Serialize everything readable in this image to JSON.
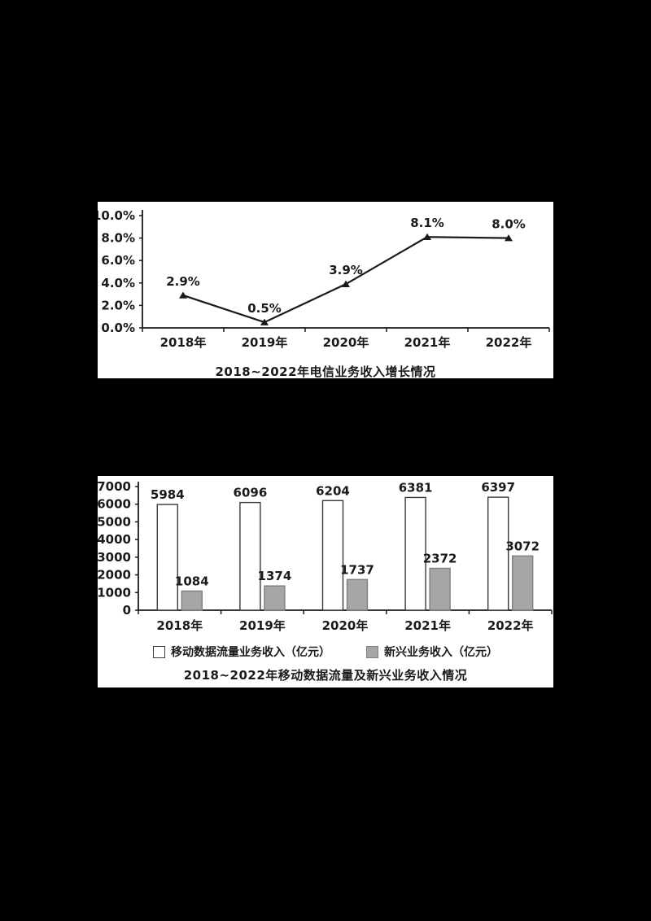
{
  "page": {
    "background": "#000000",
    "panel_background": "#ffffff",
    "text_color": "#1a1a1a"
  },
  "chart_data": [
    {
      "type": "line",
      "title": "2018~2022年电信业务收入增长情况",
      "categories": [
        "2018年",
        "2019年",
        "2020年",
        "2021年",
        "2022年"
      ],
      "values": [
        2.9,
        0.5,
        3.9,
        8.1,
        8.0
      ],
      "data_labels": [
        "2.9%",
        "0.5%",
        "3.9%",
        "8.1%",
        "8.0%"
      ],
      "ylabel": "",
      "xlabel": "",
      "ylim": [
        0,
        10
      ],
      "ytick_step": 2,
      "ytick_labels": [
        "0.0%",
        "2.0%",
        "4.0%",
        "6.0%",
        "8.0%",
        "10.0%"
      ],
      "line_color": "#1a1a1a",
      "marker": "triangle",
      "grid": false,
      "legend_position": "none"
    },
    {
      "type": "bar",
      "title": "2018~2022年移动数据流量及新兴业务收入情况",
      "categories": [
        "2018年",
        "2019年",
        "2020年",
        "2021年",
        "2022年"
      ],
      "series": [
        {
          "name": "移动数据流量业务收入（亿元）",
          "values": [
            5984,
            6096,
            6204,
            6381,
            6397
          ],
          "fill": "#ffffff",
          "stroke": "#3a3a3a"
        },
        {
          "name": "新兴业务收入（亿元）",
          "values": [
            1084,
            1374,
            1737,
            2372,
            3072
          ],
          "fill": "#a6a6a6",
          "stroke": "#7f7f7f"
        }
      ],
      "ylim": [
        0,
        7000
      ],
      "ytick_step": 1000,
      "ytick_labels": [
        "0",
        "1000",
        "2000",
        "3000",
        "4000",
        "5000",
        "6000",
        "7000"
      ],
      "grid": false,
      "legend_position": "bottom"
    }
  ]
}
